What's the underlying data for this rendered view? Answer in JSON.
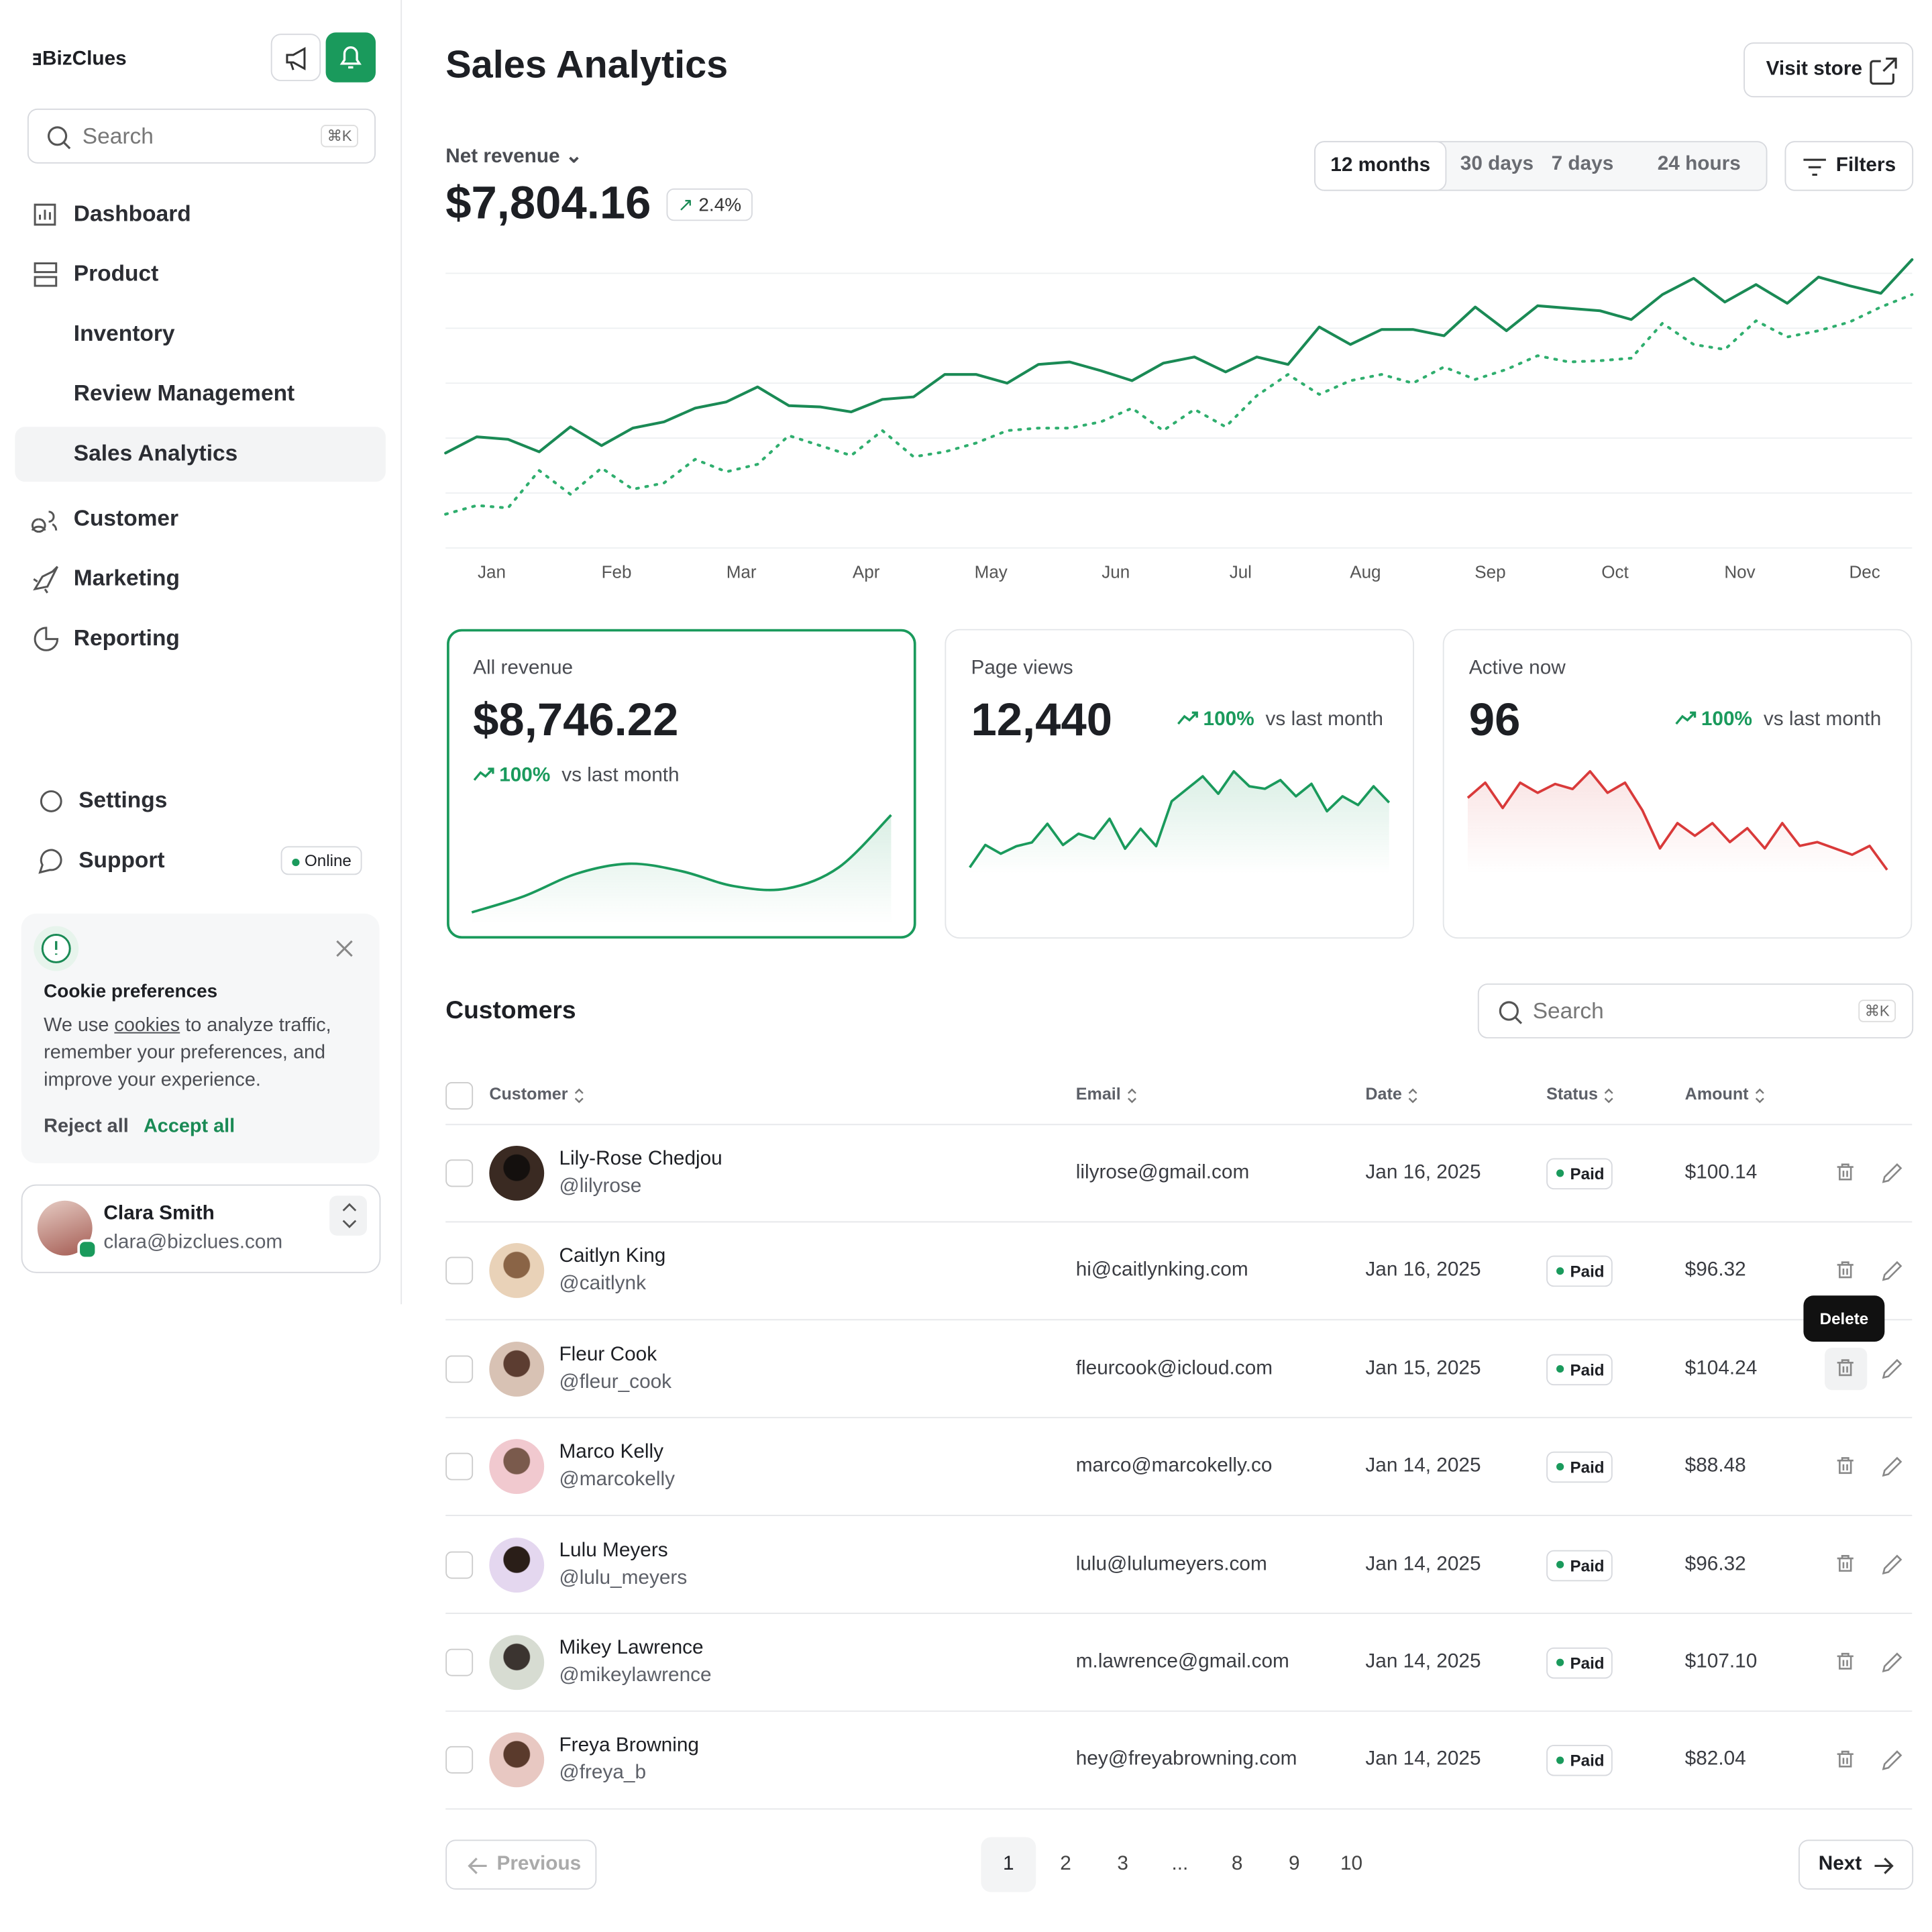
{
  "sidebar": {
    "brand": "BizClues",
    "search_placeholder": "Search",
    "search_shortcut": "⌘K",
    "nav": [
      "Dashboard",
      "Product",
      "Inventory",
      "Review Management",
      "Sales Analytics",
      "Customer",
      "Marketing",
      "Reporting"
    ],
    "bottom_nav": [
      "Settings",
      "Support"
    ],
    "support_status": "Online",
    "cookie": {
      "title": "Cookie preferences",
      "text_before": "We use",
      "link": "cookies",
      "text_after": "to analyze traffic, remember your preferences, and improve your experience.",
      "reject": "Reject all",
      "accept": "Accept all"
    },
    "user": {
      "name": "Clara Smith",
      "email": "clara@bizclues.com"
    }
  },
  "header": {
    "title": "Sales Analytics",
    "visit_store": "Visit store"
  },
  "revenue": {
    "metric": "Net revenue",
    "value": "$7,804.16",
    "change": "2.4%",
    "ranges": [
      "12 months",
      "30 days",
      "7 days",
      "24 hours"
    ],
    "filters": "Filters"
  },
  "revenue_chart": {
    "type": "line",
    "months": [
      "Jan",
      "Feb",
      "Mar",
      "Apr",
      "May",
      "Jun",
      "Jul",
      "Aug",
      "Sep",
      "Oct",
      "Nov",
      "Dec"
    ],
    "series": [
      {
        "color": "#1a8a55",
        "style": "solid",
        "values": [
          77,
          90,
          88,
          78,
          98,
          83,
          97,
          102,
          113,
          118,
          130,
          115,
          114,
          110,
          120,
          122,
          140,
          140,
          133,
          148,
          150,
          143,
          135,
          149,
          154,
          142,
          154,
          148,
          178,
          164,
          176,
          176,
          171,
          194,
          175,
          195,
          193,
          191,
          184,
          204,
          217,
          198,
          212,
          197,
          218,
          211,
          205,
          232
        ]
      },
      {
        "color": "#2fae6e",
        "style": "dotted",
        "values": [
          28,
          35,
          33,
          63,
          44,
          65,
          48,
          53,
          72,
          62,
          68,
          91,
          83,
          75,
          95,
          74,
          78,
          85,
          95,
          97,
          97,
          102,
          113,
          95,
          112,
          98,
          123,
          140,
          124,
          135,
          140,
          133,
          146,
          136,
          144,
          155,
          150,
          151,
          153,
          181,
          164,
          160,
          183,
          170,
          175,
          182,
          194,
          204
        ]
      }
    ]
  },
  "kpis": [
    {
      "label": "All revenue",
      "value": "$8,746.22",
      "change": "100%",
      "comparison": "vs last month",
      "color": "#1a9a5c",
      "smooth": true,
      "trend": [
        9,
        22,
        40,
        48,
        42,
        30,
        28,
        45,
        87
      ]
    },
    {
      "label": "Page views",
      "value": "12,440",
      "change": "100%",
      "comparison": "vs last month",
      "color": "#1a9a5c",
      "smooth": false,
      "trend": [
        5,
        23,
        16,
        22,
        25,
        40,
        23,
        32,
        28,
        44,
        20,
        36,
        22,
        58,
        68,
        78,
        64,
        82,
        70,
        68,
        75,
        62,
        72,
        50,
        62,
        55,
        70,
        57
      ]
    },
    {
      "label": "Active now",
      "value": "96",
      "change": "100%",
      "comparison": "vs last month",
      "color": "#d93a3a",
      "smooth": false,
      "trend": [
        60,
        72,
        52,
        72,
        64,
        71,
        67,
        81,
        64,
        72,
        50,
        20,
        40,
        30,
        40,
        25,
        36,
        20,
        40,
        22,
        25,
        20,
        15,
        22,
        3
      ]
    }
  ],
  "customers": {
    "title": "Customers",
    "search_placeholder": "Search",
    "search_shortcut": "⌘K",
    "columns": [
      "Customer",
      "Email",
      "Date",
      "Status",
      "Amount"
    ],
    "rows": [
      {
        "name": "Lily-Rose Chedjou",
        "handle": "@lilyrose",
        "email": "lilyrose@gmail.com",
        "date": "Jan 16, 2025",
        "status": "Paid",
        "amount": "$100.14"
      },
      {
        "name": "Caitlyn King",
        "handle": "@caitlynk",
        "email": "hi@caitlynking.com",
        "date": "Jan 16, 2025",
        "status": "Paid",
        "amount": "$96.32"
      },
      {
        "name": "Fleur Cook",
        "handle": "@fleur_cook",
        "email": "fleurcook@icloud.com",
        "date": "Jan 15, 2025",
        "status": "Paid",
        "amount": "$104.24"
      },
      {
        "name": "Marco Kelly",
        "handle": "@marcokelly",
        "email": "marco@marcokelly.co",
        "date": "Jan 14, 2025",
        "status": "Paid",
        "amount": "$88.48"
      },
      {
        "name": "Lulu Meyers",
        "handle": "@lulu_meyers",
        "email": "lulu@lulumeyers.com",
        "date": "Jan 14, 2025",
        "status": "Paid",
        "amount": "$96.32"
      },
      {
        "name": "Mikey Lawrence",
        "handle": "@mikeylawrence",
        "email": "m.lawrence@gmail.com",
        "date": "Jan 14, 2025",
        "status": "Paid",
        "amount": "$107.10"
      },
      {
        "name": "Freya Browning",
        "handle": "@freya_b",
        "email": "hey@freyabrowning.com",
        "date": "Jan 14, 2025",
        "status": "Paid",
        "amount": "$82.04"
      }
    ],
    "tooltip": "Delete"
  },
  "pagination": {
    "previous": "Previous",
    "pages": [
      "1",
      "2",
      "3",
      "...",
      "8",
      "9",
      "10"
    ],
    "next": "Next"
  }
}
